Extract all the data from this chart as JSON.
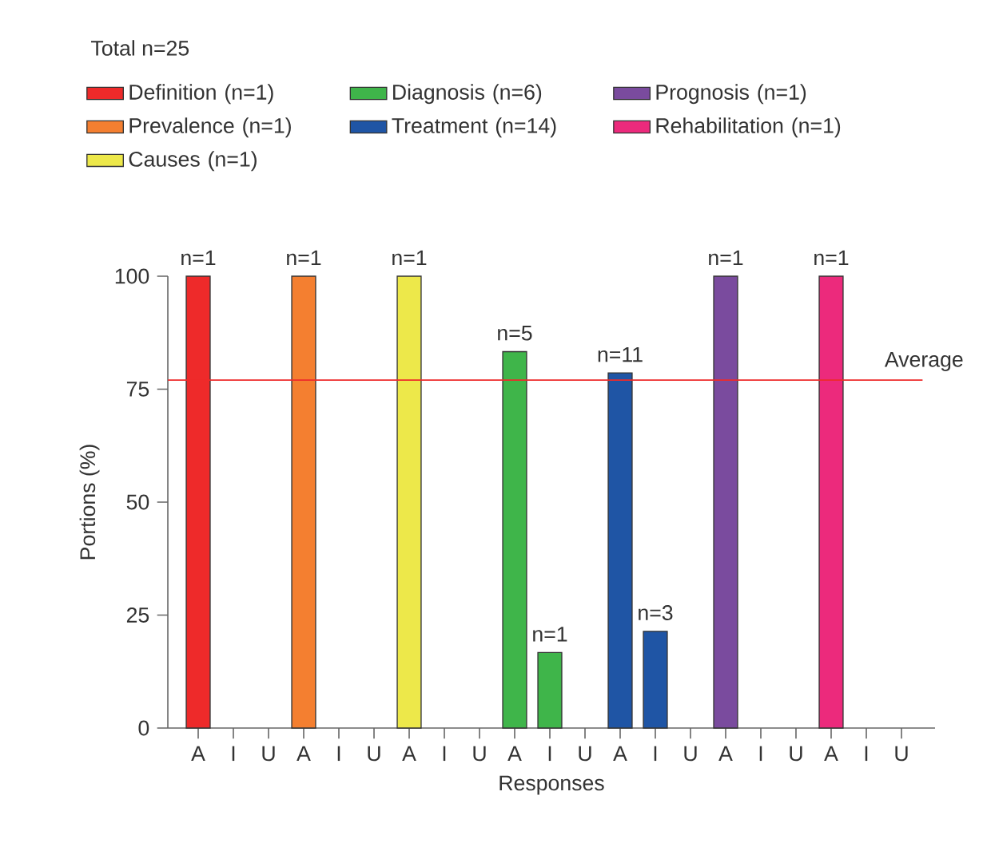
{
  "chart_data": {
    "type": "bar",
    "legend_title": "Total n=25",
    "xlabel": "Responses",
    "ylabel": "Portions (%)",
    "categories": [
      "A",
      "I",
      "U",
      "A",
      "I",
      "U",
      "A",
      "I",
      "U",
      "A",
      "I",
      "U",
      "A",
      "I",
      "U",
      "A",
      "I",
      "U",
      "A",
      "I",
      "U"
    ],
    "series": [
      {
        "name": "Definition (n=1)",
        "color": "#ee2a2a",
        "values": [
          100,
          null,
          null,
          null,
          null,
          null,
          null,
          null,
          null,
          null,
          null,
          null,
          null,
          null,
          null,
          null,
          null,
          null,
          null,
          null,
          null
        ]
      },
      {
        "name": "Diagnosis (n=6)",
        "color": "#3fb54a",
        "values": [
          null,
          null,
          null,
          null,
          null,
          null,
          null,
          null,
          null,
          83.3,
          16.7,
          null,
          null,
          null,
          null,
          null,
          null,
          null,
          null,
          null,
          null
        ]
      },
      {
        "name": "Prognosis (n=1)",
        "color": "#7a4b9e",
        "values": [
          null,
          null,
          null,
          null,
          null,
          null,
          null,
          null,
          null,
          null,
          null,
          null,
          null,
          null,
          null,
          100,
          null,
          null,
          null,
          null,
          null
        ]
      },
      {
        "name": "Prevalence (n=1)",
        "color": "#f47f30",
        "values": [
          null,
          null,
          null,
          100,
          null,
          null,
          null,
          null,
          null,
          null,
          null,
          null,
          null,
          null,
          null,
          null,
          null,
          null,
          null,
          null,
          null
        ]
      },
      {
        "name": "Treatment (n=14)",
        "color": "#1f55a5",
        "values": [
          null,
          null,
          null,
          null,
          null,
          null,
          null,
          null,
          null,
          null,
          null,
          null,
          78.6,
          21.4,
          null,
          null,
          null,
          null,
          null,
          null,
          null
        ]
      },
      {
        "name": "Rehabilitation (n=1)",
        "color": "#ec2a7c",
        "values": [
          null,
          null,
          null,
          null,
          null,
          null,
          null,
          null,
          null,
          null,
          null,
          null,
          null,
          null,
          null,
          null,
          null,
          null,
          100,
          null,
          null
        ]
      },
      {
        "name": "Causes (n=1)",
        "color": "#ede84a",
        "values": [
          null,
          null,
          null,
          null,
          null,
          null,
          100,
          null,
          null,
          null,
          null,
          null,
          null,
          null,
          null,
          null,
          null,
          null,
          null,
          null,
          null
        ]
      }
    ],
    "annotations": [
      "n=1",
      "n=1",
      "n=1",
      "n=5",
      "n=1",
      "n=11",
      "n=3",
      "n=1",
      "n=1"
    ],
    "ylim": [
      0,
      100
    ],
    "yticks": [
      0,
      25,
      50,
      75,
      100
    ],
    "ref_lines": [
      {
        "axis": "y",
        "value": 77,
        "label": "Average",
        "color": "#ee2a2a"
      }
    ],
    "grid": false,
    "legend": "top"
  }
}
